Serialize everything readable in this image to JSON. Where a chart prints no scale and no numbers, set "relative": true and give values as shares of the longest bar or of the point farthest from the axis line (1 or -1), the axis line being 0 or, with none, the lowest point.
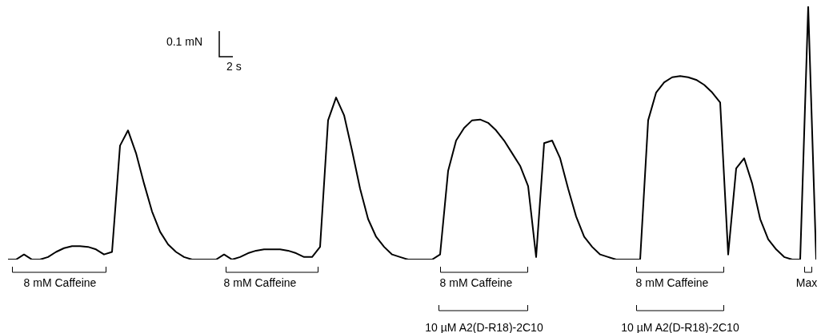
{
  "chart_data": {
    "type": "line",
    "relative": true,
    "color": "#000000",
    "marker": "none",
    "line_style": "solid",
    "categories": [
      null,
      null,
      null,
      null,
      null,
      null,
      null,
      null,
      null,
      null,
      null,
      null,
      null,
      null,
      null,
      null,
      null,
      null,
      null,
      null,
      null,
      null,
      null,
      null,
      null,
      null,
      null,
      null,
      null,
      null,
      null,
      null,
      null,
      null,
      null,
      null,
      null,
      null,
      null,
      null,
      null,
      null,
      null,
      null,
      null,
      null,
      null,
      null,
      null,
      null,
      null,
      null,
      null,
      null,
      null,
      null,
      null,
      null,
      null,
      null,
      null,
      null,
      null,
      null,
      null,
      null,
      null,
      null,
      null,
      null,
      null,
      null,
      null,
      null,
      null,
      null,
      null,
      null,
      null,
      null,
      null,
      null,
      null,
      null,
      null,
      null,
      null,
      null,
      null,
      null,
      null,
      null,
      null,
      null,
      null,
      null,
      null,
      null,
      null,
      null,
      null,
      null
    ],
    "values": [
      0,
      0,
      0.02,
      0,
      0,
      0.01,
      0.03,
      0.045,
      0.053,
      0.053,
      0.05,
      0.04,
      0.02,
      0.03,
      0.45,
      0.51,
      0.42,
      0.3,
      0.19,
      0.11,
      0.06,
      0.03,
      0.01,
      0,
      0,
      0,
      0,
      0.02,
      0,
      0.01,
      0.025,
      0.035,
      0.04,
      0.04,
      0.04,
      0.035,
      0.025,
      0.01,
      0.01,
      0.05,
      0.55,
      0.64,
      0.57,
      0.43,
      0.28,
      0.16,
      0.09,
      0.05,
      0.02,
      0.01,
      0,
      0,
      0,
      0,
      0.02,
      0.35,
      0.47,
      0.52,
      0.55,
      0.553,
      0.54,
      0.51,
      0.47,
      0.42,
      0.37,
      0.29,
      0.01,
      0.46,
      0.47,
      0.4,
      0.28,
      0.17,
      0.09,
      0.05,
      0.02,
      0.01,
      0,
      0,
      0,
      0,
      0.55,
      0.66,
      0.7,
      0.72,
      0.725,
      0.72,
      0.71,
      0.69,
      0.66,
      0.62,
      0.02,
      0.36,
      0.4,
      0.3,
      0.16,
      0.08,
      0.04,
      0.01,
      0,
      0,
      1,
      0
    ],
    "annotations": [
      "0.1 mN",
      "2 s",
      "8 mM Caffeine",
      "8 mM Caffeine",
      "8 mM Caffeine",
      "8 mM Caffeine",
      "10 µM A2(D-R18)-2C10",
      "10 µM A2(D-R18)-2C10",
      "Max"
    ]
  }
}
